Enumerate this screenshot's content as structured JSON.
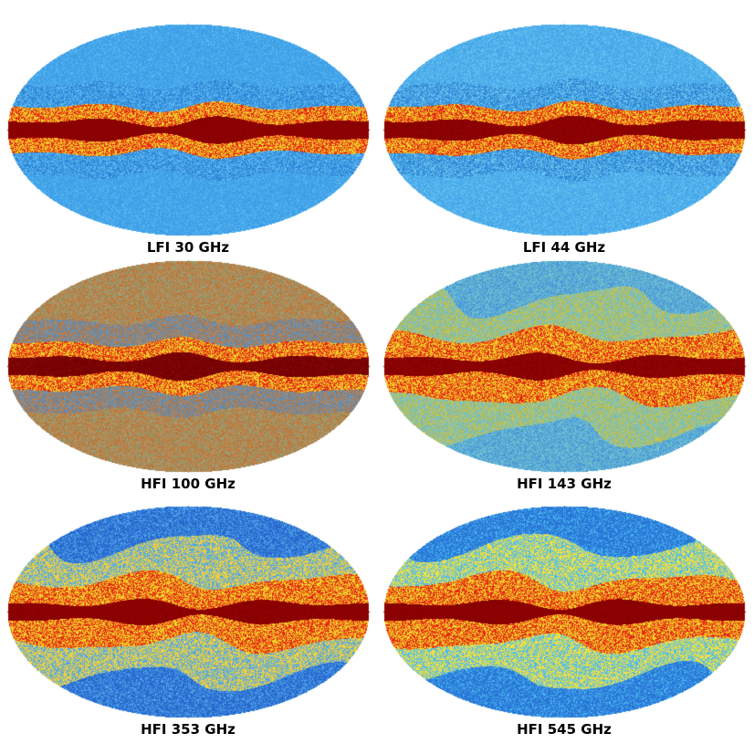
{
  "maps": [
    {
      "label": "LFI 30 GHz",
      "palette": [
        "#3fa0e8",
        "#5ab8f0",
        "#2f86d8"
      ],
      "band": "#8b0000",
      "noise": 0.25
    },
    {
      "label": "LFI 44 GHz",
      "palette": [
        "#46a8ea",
        "#66c0ef",
        "#2e88d6"
      ],
      "band": "#8b0000",
      "noise": 0.35
    },
    {
      "label": "HFI 100 GHz",
      "palette": [
        "#8fa07a",
        "#c27a3d",
        "#5f8fb8"
      ],
      "band": "#7a0000",
      "noise": 0.6
    },
    {
      "label": "HFI 143 GHz",
      "palette": [
        "#4c9ad8",
        "#6fc0d0",
        "#c0c050"
      ],
      "band": "#8b0000",
      "noise": 0.45
    },
    {
      "label": "HFI 353 GHz",
      "palette": [
        "#2a6ad0",
        "#4fa8e8",
        "#f0d040"
      ],
      "band": "#8b0000",
      "noise": 0.3
    },
    {
      "label": "HFI 545 GHz",
      "palette": [
        "#2a78d8",
        "#4cbcf0",
        "#f2e040"
      ],
      "band": "#8b0000",
      "noise": 0.25
    }
  ]
}
